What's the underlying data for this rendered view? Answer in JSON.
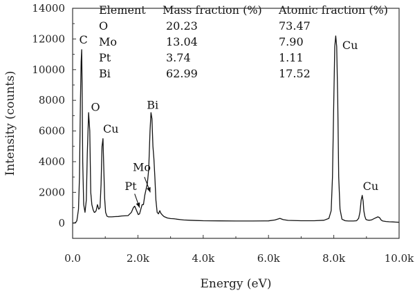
{
  "chart_data": {
    "type": "line",
    "title": "",
    "xlabel": "Energy (eV)",
    "ylabel": "Intensity (counts)",
    "xlim": [
      0,
      10000
    ],
    "ylim": [
      -1000,
      14000
    ],
    "grid": false,
    "x_ticks": [
      {
        "value": 0,
        "label": "0.0"
      },
      {
        "value": 2000,
        "label": "2.0k"
      },
      {
        "value": 4000,
        "label": "4.0k"
      },
      {
        "value": 6000,
        "label": "6.0k"
      },
      {
        "value": 8000,
        "label": "8.0k"
      },
      {
        "value": 10000,
        "label": "10.0k"
      }
    ],
    "y_ticks": [
      {
        "value": 0,
        "label": "0"
      },
      {
        "value": 2000,
        "label": "2000"
      },
      {
        "value": 4000,
        "label": "4000"
      },
      {
        "value": 6000,
        "label": "6000"
      },
      {
        "value": 8000,
        "label": "8000"
      },
      {
        "value": 10000,
        "label": "10000"
      },
      {
        "value": 12000,
        "label": "12000"
      },
      {
        "value": 14000,
        "label": "14000"
      }
    ],
    "series": [
      {
        "x": [
          0,
          50,
          100,
          130,
          150,
          180,
          210,
          240,
          260,
          277,
          290,
          310,
          340,
          380,
          420,
          450,
          490,
          525,
          555,
          590,
          630,
          660,
          680,
          720,
          760,
          800,
          840,
          870,
          900,
          930,
          950,
          980,
          1010,
          1050,
          1100,
          1200,
          1300,
          1400,
          1500,
          1600,
          1700,
          1800,
          1860,
          1900,
          1940,
          1980,
          2010,
          2050,
          2090,
          2130,
          2170,
          2210,
          2250,
          2290,
          2330,
          2370,
          2400,
          2430,
          2460,
          2490,
          2520,
          2550,
          2590,
          2630,
          2670,
          2700,
          2750,
          2800,
          2900,
          3000,
          3100,
          3200,
          3300,
          3400,
          3600,
          3800,
          4000,
          4500,
          5000,
          5500,
          6000,
          6200,
          6350,
          6450,
          6600,
          7000,
          7400,
          7700,
          7850,
          7920,
          7960,
          8000,
          8030,
          8060,
          8090,
          8120,
          8150,
          8190,
          8250,
          8350,
          8450,
          8600,
          8700,
          8760,
          8800,
          8840,
          8870,
          8900,
          8920,
          8950,
          8980,
          9020,
          9080,
          9150,
          9250,
          9350,
          9400,
          9450,
          9500,
          9600,
          9700,
          9800,
          9900,
          10000
        ],
        "y": [
          0,
          0,
          50,
          150,
          450,
          900,
          3000,
          8000,
          10500,
          11300,
          9000,
          4000,
          1200,
          700,
          1500,
          4500,
          7200,
          6000,
          2000,
          1200,
          850,
          700,
          700,
          800,
          1200,
          900,
          1000,
          2500,
          5000,
          5500,
          4000,
          1600,
          700,
          450,
          400,
          400,
          420,
          430,
          460,
          470,
          480,
          700,
          1000,
          1100,
          900,
          700,
          550,
          600,
          900,
          1200,
          1200,
          1800,
          2200,
          2600,
          3500,
          6000,
          7200,
          6800,
          5000,
          4200,
          3000,
          1500,
          700,
          600,
          800,
          650,
          520,
          420,
          330,
          290,
          280,
          250,
          220,
          200,
          180,
          160,
          150,
          140,
          130,
          130,
          140,
          200,
          300,
          220,
          170,
          150,
          150,
          180,
          300,
          800,
          3000,
          8000,
          11500,
          12200,
          11500,
          8000,
          3000,
          900,
          250,
          150,
          130,
          130,
          150,
          300,
          700,
          1500,
          1800,
          1400,
          800,
          450,
          250,
          200,
          180,
          200,
          300,
          400,
          350,
          200,
          130,
          100,
          80,
          70,
          60,
          50
        ]
      }
    ],
    "annotations": [
      {
        "text": "C",
        "x": 330,
        "y": 11700
      },
      {
        "text": "O",
        "x": 700,
        "y": 7300
      },
      {
        "text": "Cu",
        "x": 1170,
        "y": 5900
      },
      {
        "text": "Pt",
        "x": 1780,
        "y": 2150
      },
      {
        "text": "Mo",
        "x": 2120,
        "y": 3400
      },
      {
        "text": "Bi",
        "x": 2450,
        "y": 7450
      },
      {
        "text": "Cu",
        "x": 8500,
        "y": 11350
      },
      {
        "text": "Cu",
        "x": 9130,
        "y": 2150
      }
    ],
    "arrows": [
      {
        "from": [
          1900,
          1900
        ],
        "to": [
          2050,
          1000
        ]
      },
      {
        "from": [
          2200,
          3000
        ],
        "to": [
          2380,
          2000
        ]
      }
    ],
    "table": {
      "headers": [
        "Element",
        "Mass fraction (%)",
        "Atomic fraction (%)"
      ],
      "rows": [
        [
          "O",
          "20.23",
          "73.47"
        ],
        [
          "Mo",
          "13.04",
          "7.90"
        ],
        [
          "Pt",
          "3.74",
          "1.11"
        ],
        [
          "Bi",
          "62.99",
          "17.52"
        ]
      ]
    }
  }
}
